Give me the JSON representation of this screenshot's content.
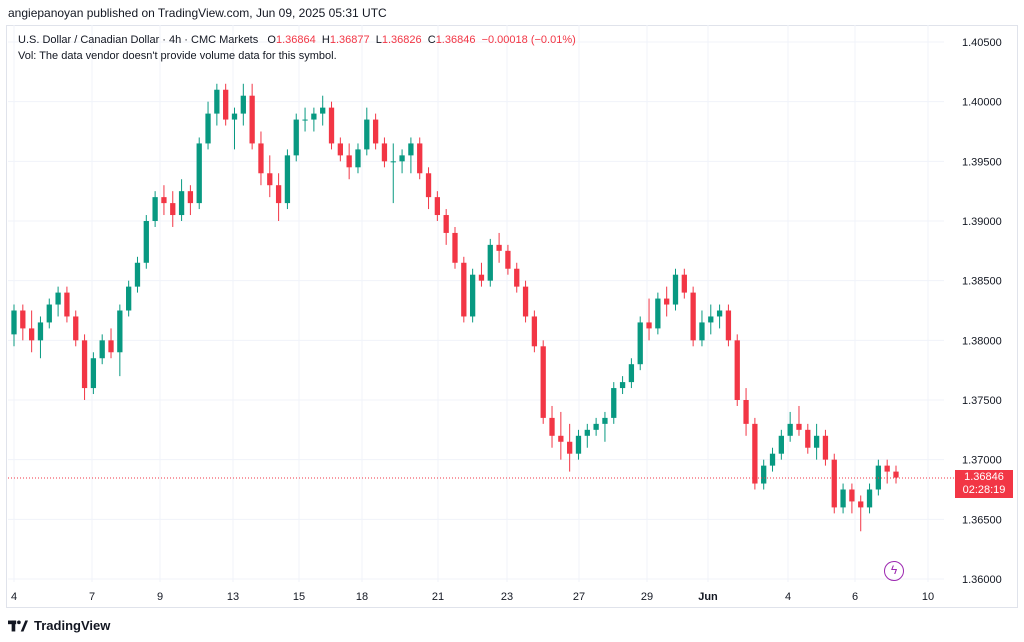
{
  "publisher_line": "angiepanoyan published on TradingView.com, Jun 09, 2025 05:31 UTC",
  "legend": {
    "symbol": "U.S. Dollar / Canadian Dollar · 4h · CMC Markets",
    "o_label": "O",
    "o_value": "1.36864",
    "h_label": "H",
    "h_value": "1.36877",
    "l_label": "L",
    "l_value": "1.36826",
    "c_label": "C",
    "c_value": "1.36846",
    "change": "−0.00018 (−0.01%)",
    "vol_note": "Vol: The data vendor doesn't provide volume data for this symbol."
  },
  "price_tag": {
    "price": "1.36846",
    "countdown": "02:28:19"
  },
  "footer": {
    "brand": "TradingView"
  },
  "colors": {
    "up": "#089981",
    "down": "#f23645",
    "grid": "#f0f3fa",
    "accent": "#9c27b0"
  },
  "icons": {
    "alert": "lightning-bolt-icon",
    "logo": "tradingview-logo-icon"
  },
  "chart_data": {
    "type": "candlestick",
    "title": "U.S. Dollar / Canadian Dollar · 4h · CMC Markets",
    "ylim": [
      1.36,
      1.405
    ],
    "y_ticks": [
      "1.40500",
      "1.40000",
      "1.39500",
      "1.39000",
      "1.38500",
      "1.38000",
      "1.37500",
      "1.37000",
      "1.36500",
      "1.36000"
    ],
    "y_tick_values": [
      1.405,
      1.4,
      1.395,
      1.39,
      1.385,
      1.38,
      1.375,
      1.37,
      1.365,
      1.36
    ],
    "x_tick_labels": [
      "4",
      "7",
      "9",
      "13",
      "15",
      "18",
      "21",
      "23",
      "27",
      "29",
      "Jun",
      "4",
      "6",
      "10"
    ],
    "current_price": 1.36846,
    "grid": true,
    "candles_ohlc": [
      [
        1.3805,
        1.383,
        1.3795,
        1.3825
      ],
      [
        1.3825,
        1.383,
        1.38,
        1.381
      ],
      [
        1.381,
        1.3825,
        1.379,
        1.38
      ],
      [
        1.38,
        1.382,
        1.3785,
        1.3815
      ],
      [
        1.3815,
        1.3835,
        1.381,
        1.383
      ],
      [
        1.383,
        1.3845,
        1.382,
        1.384
      ],
      [
        1.384,
        1.3845,
        1.3815,
        1.382
      ],
      [
        1.382,
        1.3825,
        1.3795,
        1.38
      ],
      [
        1.38,
        1.3805,
        1.375,
        1.376
      ],
      [
        1.376,
        1.379,
        1.3755,
        1.3785
      ],
      [
        1.3785,
        1.3805,
        1.378,
        1.38
      ],
      [
        1.38,
        1.381,
        1.3785,
        1.379
      ],
      [
        1.379,
        1.383,
        1.377,
        1.3825
      ],
      [
        1.3825,
        1.385,
        1.382,
        1.3845
      ],
      [
        1.3845,
        1.387,
        1.384,
        1.3865
      ],
      [
        1.3865,
        1.3905,
        1.386,
        1.39
      ],
      [
        1.39,
        1.3925,
        1.3895,
        1.392
      ],
      [
        1.392,
        1.393,
        1.3905,
        1.3915
      ],
      [
        1.3915,
        1.3925,
        1.3895,
        1.3905
      ],
      [
        1.3905,
        1.3935,
        1.39,
        1.3925
      ],
      [
        1.3925,
        1.393,
        1.3905,
        1.3915
      ],
      [
        1.3915,
        1.397,
        1.391,
        1.3965
      ],
      [
        1.3965,
        1.4,
        1.396,
        1.399
      ],
      [
        1.399,
        1.4015,
        1.398,
        1.401
      ],
      [
        1.401,
        1.4015,
        1.398,
        1.3985
      ],
      [
        1.3985,
        1.3995,
        1.396,
        1.399
      ],
      [
        1.399,
        1.4015,
        1.398,
        1.4005
      ],
      [
        1.4005,
        1.4015,
        1.396,
        1.3965
      ],
      [
        1.3965,
        1.3975,
        1.393,
        1.394
      ],
      [
        1.394,
        1.3955,
        1.392,
        1.393
      ],
      [
        1.393,
        1.394,
        1.39,
        1.3915
      ],
      [
        1.3915,
        1.396,
        1.391,
        1.3955
      ],
      [
        1.3955,
        1.399,
        1.395,
        1.3985
      ],
      [
        1.3985,
        1.3995,
        1.3975,
        1.3985
      ],
      [
        1.3985,
        1.3995,
        1.3975,
        1.399
      ],
      [
        1.399,
        1.4005,
        1.398,
        1.3995
      ],
      [
        1.3995,
        1.4,
        1.396,
        1.3965
      ],
      [
        1.3965,
        1.397,
        1.395,
        1.3955
      ],
      [
        1.3955,
        1.3965,
        1.3935,
        1.3945
      ],
      [
        1.3945,
        1.3965,
        1.394,
        1.396
      ],
      [
        1.396,
        1.3995,
        1.3955,
        1.3985
      ],
      [
        1.3985,
        1.399,
        1.396,
        1.3965
      ],
      [
        1.3965,
        1.397,
        1.3945,
        1.395
      ],
      [
        1.395,
        1.3965,
        1.3915,
        1.395
      ],
      [
        1.395,
        1.396,
        1.394,
        1.3955
      ],
      [
        1.3955,
        1.397,
        1.394,
        1.3965
      ],
      [
        1.3965,
        1.397,
        1.3935,
        1.394
      ],
      [
        1.394,
        1.3945,
        1.391,
        1.392
      ],
      [
        1.392,
        1.3925,
        1.39,
        1.3905
      ],
      [
        1.3905,
        1.391,
        1.388,
        1.389
      ],
      [
        1.389,
        1.3895,
        1.386,
        1.3865
      ],
      [
        1.3865,
        1.387,
        1.3815,
        1.382
      ],
      [
        1.382,
        1.386,
        1.3815,
        1.3855
      ],
      [
        1.3855,
        1.3865,
        1.3845,
        1.385
      ],
      [
        1.385,
        1.3885,
        1.3845,
        1.388
      ],
      [
        1.388,
        1.389,
        1.3865,
        1.3875
      ],
      [
        1.3875,
        1.388,
        1.3855,
        1.386
      ],
      [
        1.386,
        1.3865,
        1.384,
        1.3845
      ],
      [
        1.3845,
        1.385,
        1.3815,
        1.382
      ],
      [
        1.382,
        1.3825,
        1.379,
        1.3795
      ],
      [
        1.3795,
        1.38,
        1.373,
        1.3735
      ],
      [
        1.3735,
        1.3745,
        1.371,
        1.372
      ],
      [
        1.372,
        1.374,
        1.37,
        1.3715
      ],
      [
        1.3715,
        1.373,
        1.369,
        1.3705
      ],
      [
        1.3705,
        1.3725,
        1.37,
        1.372
      ],
      [
        1.372,
        1.373,
        1.371,
        1.3725
      ],
      [
        1.3725,
        1.3735,
        1.372,
        1.373
      ],
      [
        1.373,
        1.374,
        1.3715,
        1.3735
      ],
      [
        1.3735,
        1.3765,
        1.373,
        1.376
      ],
      [
        1.376,
        1.377,
        1.3755,
        1.3765
      ],
      [
        1.3765,
        1.3785,
        1.376,
        1.378
      ],
      [
        1.378,
        1.382,
        1.3775,
        1.3815
      ],
      [
        1.3815,
        1.3835,
        1.38,
        1.381
      ],
      [
        1.381,
        1.384,
        1.3805,
        1.3835
      ],
      [
        1.3835,
        1.3845,
        1.382,
        1.383
      ],
      [
        1.383,
        1.386,
        1.3825,
        1.3855
      ],
      [
        1.3855,
        1.386,
        1.3835,
        1.384
      ],
      [
        1.384,
        1.3845,
        1.3795,
        1.38
      ],
      [
        1.38,
        1.3825,
        1.3795,
        1.3815
      ],
      [
        1.3815,
        1.383,
        1.3805,
        1.382
      ],
      [
        1.382,
        1.383,
        1.381,
        1.3825
      ],
      [
        1.3825,
        1.383,
        1.3795,
        1.38
      ],
      [
        1.38,
        1.3805,
        1.3745,
        1.375
      ],
      [
        1.375,
        1.376,
        1.372,
        1.373
      ],
      [
        1.373,
        1.3735,
        1.3675,
        1.368
      ],
      [
        1.368,
        1.37,
        1.3675,
        1.3695
      ],
      [
        1.3695,
        1.371,
        1.369,
        1.3705
      ],
      [
        1.3705,
        1.3725,
        1.37,
        1.372
      ],
      [
        1.372,
        1.374,
        1.3715,
        1.373
      ],
      [
        1.373,
        1.3745,
        1.372,
        1.3725
      ],
      [
        1.3725,
        1.373,
        1.3705,
        1.371
      ],
      [
        1.371,
        1.373,
        1.37,
        1.372
      ],
      [
        1.372,
        1.3725,
        1.3695,
        1.37
      ],
      [
        1.37,
        1.3705,
        1.3655,
        1.366
      ],
      [
        1.366,
        1.368,
        1.3655,
        1.3675
      ],
      [
        1.3675,
        1.368,
        1.3655,
        1.3665
      ],
      [
        1.3665,
        1.367,
        1.364,
        1.366
      ],
      [
        1.366,
        1.368,
        1.3655,
        1.3675
      ],
      [
        1.3675,
        1.37,
        1.367,
        1.3695
      ],
      [
        1.3695,
        1.37,
        1.368,
        1.369
      ],
      [
        1.369,
        1.3695,
        1.368,
        1.3685
      ]
    ]
  }
}
